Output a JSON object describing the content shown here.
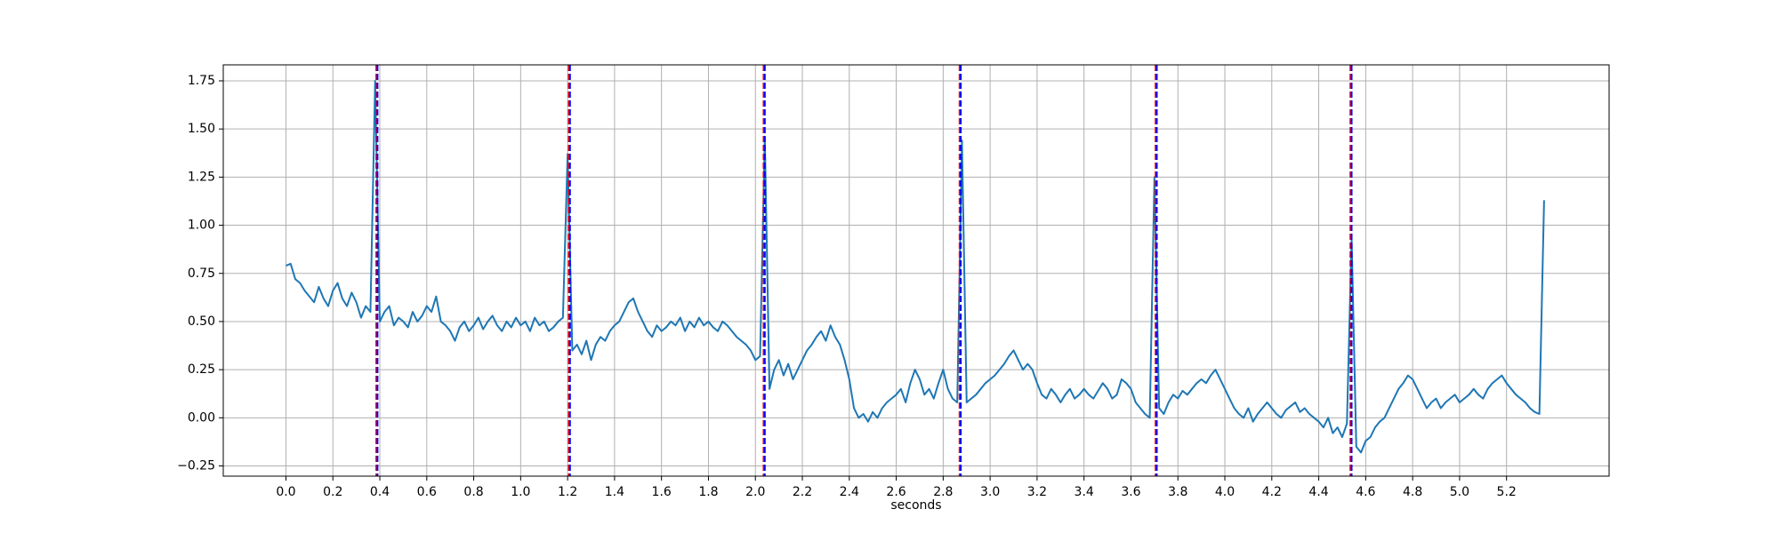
{
  "chart_data": {
    "type": "line",
    "xlabel": "seconds",
    "x": [
      0,
      0.02,
      0.04,
      0.06,
      0.08,
      0.1,
      0.12,
      0.14,
      0.16,
      0.18,
      0.2,
      0.22,
      0.24,
      0.26,
      0.28,
      0.3,
      0.32,
      0.34,
      0.36,
      0.38,
      0.4,
      0.42,
      0.44,
      0.46,
      0.48,
      0.5,
      0.52,
      0.54,
      0.56,
      0.58,
      0.6,
      0.62,
      0.64,
      0.66,
      0.68,
      0.7,
      0.72,
      0.74,
      0.76,
      0.78,
      0.8,
      0.82,
      0.84,
      0.86,
      0.88,
      0.9,
      0.92,
      0.94,
      0.96,
      0.98,
      1,
      1.02,
      1.04,
      1.06,
      1.08,
      1.1,
      1.12,
      1.14,
      1.16,
      1.18,
      1.2,
      1.22,
      1.24,
      1.26,
      1.28,
      1.3,
      1.32,
      1.34,
      1.36,
      1.38,
      1.4,
      1.42,
      1.44,
      1.46,
      1.48,
      1.5,
      1.52,
      1.54,
      1.56,
      1.58,
      1.6,
      1.62,
      1.64,
      1.66,
      1.68,
      1.7,
      1.72,
      1.74,
      1.76,
      1.78,
      1.8,
      1.82,
      1.84,
      1.86,
      1.88,
      1.9,
      1.92,
      1.94,
      1.96,
      1.98,
      2,
      2.02,
      2.04,
      2.06,
      2.08,
      2.1,
      2.12,
      2.14,
      2.16,
      2.18,
      2.2,
      2.22,
      2.24,
      2.26,
      2.28,
      2.3,
      2.32,
      2.34,
      2.36,
      2.38,
      2.4,
      2.42,
      2.44,
      2.46,
      2.48,
      2.5,
      2.52,
      2.54,
      2.56,
      2.58,
      2.6,
      2.62,
      2.64,
      2.66,
      2.68,
      2.7,
      2.72,
      2.74,
      2.76,
      2.78,
      2.8,
      2.82,
      2.84,
      2.86,
      2.88,
      2.9,
      2.92,
      2.94,
      2.96,
      2.98,
      3,
      3.02,
      3.04,
      3.06,
      3.08,
      3.1,
      3.12,
      3.14,
      3.16,
      3.18,
      3.2,
      3.22,
      3.24,
      3.26,
      3.28,
      3.3,
      3.32,
      3.34,
      3.36,
      3.38,
      3.4,
      3.42,
      3.44,
      3.46,
      3.48,
      3.5,
      3.52,
      3.54,
      3.56,
      3.58,
      3.6,
      3.62,
      3.64,
      3.66,
      3.68,
      3.7,
      3.72,
      3.74,
      3.76,
      3.78,
      3.8,
      3.82,
      3.84,
      3.86,
      3.88,
      3.9,
      3.92,
      3.94,
      3.96,
      3.98,
      4,
      4.02,
      4.04,
      4.06,
      4.08,
      4.1,
      4.12,
      4.14,
      4.16,
      4.18,
      4.2,
      4.22,
      4.24,
      4.26,
      4.28,
      4.3,
      4.32,
      4.34,
      4.36,
      4.38,
      4.4,
      4.42,
      4.44,
      4.46,
      4.48,
      4.5,
      4.52,
      4.54,
      4.56,
      4.58,
      4.6,
      4.62,
      4.64,
      4.66,
      4.68,
      4.7,
      4.72,
      4.74,
      4.76,
      4.78,
      4.8,
      4.82,
      4.84,
      4.86,
      4.88,
      4.9,
      4.92,
      4.94,
      4.96,
      4.98,
      5,
      5.02,
      5.04,
      5.06,
      5.08,
      5.1,
      5.12,
      5.14,
      5.16,
      5.18,
      5.2,
      5.22,
      5.24,
      5.26,
      5.28,
      5.3,
      5.32,
      5.34,
      5.36
    ],
    "series": [
      {
        "color": "#1f77b4",
        "values": [
          0.79,
          0.8,
          0.72,
          0.7,
          0.66,
          0.63,
          0.6,
          0.68,
          0.62,
          0.58,
          0.66,
          0.7,
          0.62,
          0.58,
          0.65,
          0.6,
          0.52,
          0.58,
          0.55,
          1.75,
          0.5,
          0.55,
          0.58,
          0.48,
          0.52,
          0.5,
          0.47,
          0.55,
          0.5,
          0.53,
          0.58,
          0.55,
          0.63,
          0.5,
          0.48,
          0.45,
          0.4,
          0.47,
          0.5,
          0.45,
          0.48,
          0.52,
          0.46,
          0.5,
          0.53,
          0.48,
          0.45,
          0.5,
          0.47,
          0.52,
          0.48,
          0.5,
          0.45,
          0.52,
          0.48,
          0.5,
          0.45,
          0.47,
          0.5,
          0.52,
          1.37,
          0.35,
          0.38,
          0.33,
          0.4,
          0.3,
          0.38,
          0.42,
          0.4,
          0.45,
          0.48,
          0.5,
          0.55,
          0.6,
          0.62,
          0.55,
          0.5,
          0.45,
          0.42,
          0.48,
          0.45,
          0.47,
          0.5,
          0.48,
          0.52,
          0.45,
          0.5,
          0.47,
          0.52,
          0.48,
          0.5,
          0.47,
          0.45,
          0.5,
          0.48,
          0.45,
          0.42,
          0.4,
          0.38,
          0.35,
          0.3,
          0.32,
          1.46,
          0.15,
          0.25,
          0.3,
          0.22,
          0.28,
          0.2,
          0.25,
          0.3,
          0.35,
          0.38,
          0.42,
          0.45,
          0.4,
          0.48,
          0.42,
          0.38,
          0.3,
          0.2,
          0.05,
          0.0,
          0.02,
          -0.02,
          0.03,
          0.0,
          0.05,
          0.08,
          0.1,
          0.12,
          0.15,
          0.08,
          0.18,
          0.25,
          0.2,
          0.12,
          0.15,
          0.1,
          0.18,
          0.25,
          0.15,
          0.1,
          0.08,
          1.44,
          0.08,
          0.1,
          0.12,
          0.15,
          0.18,
          0.2,
          0.22,
          0.25,
          0.28,
          0.32,
          0.35,
          0.3,
          0.25,
          0.28,
          0.25,
          0.18,
          0.12,
          0.1,
          0.15,
          0.12,
          0.08,
          0.12,
          0.15,
          0.1,
          0.12,
          0.15,
          0.12,
          0.1,
          0.14,
          0.18,
          0.15,
          0.1,
          0.12,
          0.2,
          0.18,
          0.15,
          0.08,
          0.05,
          0.02,
          0.0,
          1.25,
          0.05,
          0.02,
          0.08,
          0.12,
          0.1,
          0.14,
          0.12,
          0.15,
          0.18,
          0.2,
          0.18,
          0.22,
          0.25,
          0.2,
          0.15,
          0.1,
          0.05,
          0.02,
          0.0,
          0.05,
          -0.02,
          0.02,
          0.05,
          0.08,
          0.05,
          0.02,
          0.0,
          0.04,
          0.06,
          0.08,
          0.03,
          0.05,
          0.02,
          0.0,
          -0.02,
          -0.05,
          0.0,
          -0.08,
          -0.05,
          -0.1,
          -0.03,
          0.93,
          -0.15,
          -0.18,
          -0.12,
          -0.1,
          -0.05,
          -0.02,
          0.0,
          0.05,
          0.1,
          0.15,
          0.18,
          0.22,
          0.2,
          0.15,
          0.1,
          0.05,
          0.08,
          0.1,
          0.05,
          0.08,
          0.1,
          0.12,
          0.08,
          0.1,
          0.12,
          0.15,
          0.12,
          0.1,
          0.15,
          0.18,
          0.2,
          0.22,
          0.18,
          0.15,
          0.12,
          0.1,
          0.08,
          0.05,
          0.03,
          0.02,
          1.13
        ]
      }
    ],
    "vlines": [
      {
        "color": "red",
        "x": [
          0.385,
          1.205,
          2.035,
          2.87,
          3.705,
          4.535
        ]
      },
      {
        "color": "blue",
        "x": [
          0.39,
          1.21,
          2.04,
          2.875,
          3.71,
          4.54
        ]
      }
    ],
    "xlim": [
      -0.267,
      5.637
    ],
    "ylim": [
      -0.303,
      1.833
    ],
    "xticks": [
      {
        "value": 0,
        "label": "0.0"
      },
      0.2,
      0.4,
      0.6,
      0.8,
      {
        "value": 1,
        "label": "1.0"
      },
      1.2,
      1.4,
      1.6,
      1.8,
      {
        "value": 2,
        "label": "2.0"
      },
      2.2,
      2.4,
      2.6,
      2.8,
      {
        "value": 3,
        "label": "3.0"
      },
      3.2,
      3.4,
      3.6,
      3.8,
      {
        "value": 4,
        "label": "4.0"
      },
      4.2,
      4.4,
      4.6,
      4.8,
      {
        "value": 5,
        "label": "5.0"
      },
      5.2
    ],
    "yticks": [
      {
        "value": -0.25,
        "label": "−0.25"
      },
      {
        "value": 0,
        "label": "0.00"
      },
      0.25,
      {
        "value": 0.5,
        "label": "0.50"
      },
      0.75,
      {
        "value": 1,
        "label": "1.00"
      },
      1.25,
      {
        "value": 1.5,
        "label": "1.50"
      },
      1.75
    ],
    "grid": true
  }
}
